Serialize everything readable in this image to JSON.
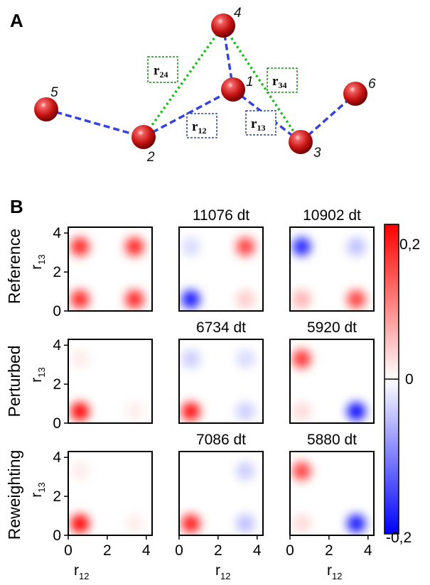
{
  "panel_a": {
    "letter": "A",
    "nodes": [
      {
        "label": "1"
      },
      {
        "label": "2"
      },
      {
        "label": "3"
      },
      {
        "label": "4"
      },
      {
        "label": "5"
      },
      {
        "label": "6"
      }
    ],
    "distances": {
      "r24": {
        "main": "r",
        "sub": "24"
      },
      "r34": {
        "main": "r",
        "sub": "34"
      },
      "r12": {
        "main": "r",
        "sub": "12"
      },
      "r13": {
        "main": "r",
        "sub": "13"
      }
    },
    "colors": {
      "blue_bond": "#3344dd",
      "green_bond": "#22bb22",
      "sphere": "#cc1111"
    }
  },
  "panel_b": {
    "letter": "B",
    "row_labels": [
      "Reference",
      "Perturbed",
      "Reweighting"
    ],
    "time_labels": [
      [
        "",
        "11076 dt",
        "10902 dt"
      ],
      [
        "",
        "6734 dt",
        "5920 dt"
      ],
      [
        "",
        "7086 dt",
        "5880 dt"
      ]
    ],
    "y_axis": {
      "main": "r",
      "sub": "13",
      "ticks": [
        "0",
        "2",
        "4"
      ]
    },
    "x_axis": {
      "main": "r",
      "sub": "12",
      "ticks": [
        "0",
        "2",
        "4"
      ]
    },
    "colorbar": {
      "top_label": "0,2",
      "mid_label": "0",
      "bottom_label": "-0,2",
      "colors": {
        "positive": "#ff0000",
        "zero": "#ffffff",
        "negative": "#0000ff"
      }
    }
  },
  "chart_data": {
    "type": "heatmap",
    "xlabel": "r12",
    "ylabel": "r13",
    "xlim": [
      0,
      4.3
    ],
    "ylim": [
      0,
      4.3
    ],
    "clim": [
      -0.2,
      0.2
    ],
    "rows": [
      "Reference",
      "Perturbed",
      "Reweighting"
    ],
    "cells": [
      [
        {
          "blobs": [
            {
              "x": 0.6,
              "y": 0.6,
              "amp": 0.17
            },
            {
              "x": 3.4,
              "y": 0.6,
              "amp": 0.17
            },
            {
              "x": 0.6,
              "y": 3.3,
              "amp": 0.17
            },
            {
              "x": 3.4,
              "y": 3.3,
              "amp": 0.17
            }
          ]
        },
        {
          "time": "11076 dt",
          "blobs": [
            {
              "x": 0.6,
              "y": 0.6,
              "amp": -0.18
            },
            {
              "x": 3.4,
              "y": 3.3,
              "amp": 0.15
            },
            {
              "x": 0.6,
              "y": 3.3,
              "amp": -0.03
            },
            {
              "x": 3.4,
              "y": 0.6,
              "amp": 0.04
            }
          ]
        },
        {
          "time": "10902 dt",
          "blobs": [
            {
              "x": 0.6,
              "y": 3.3,
              "amp": -0.17
            },
            {
              "x": 3.4,
              "y": 0.6,
              "amp": 0.15
            },
            {
              "x": 0.6,
              "y": 0.6,
              "amp": 0.06
            },
            {
              "x": 3.4,
              "y": 3.3,
              "amp": -0.05
            }
          ]
        }
      ],
      [
        {
          "blobs": [
            {
              "x": 0.6,
              "y": 0.6,
              "amp": 0.2
            },
            {
              "x": 3.4,
              "y": 0.6,
              "amp": 0.015
            },
            {
              "x": 0.6,
              "y": 3.3,
              "amp": 0.015
            }
          ]
        },
        {
          "time": "6734 dt",
          "blobs": [
            {
              "x": 0.6,
              "y": 0.6,
              "amp": 0.19
            },
            {
              "x": 3.4,
              "y": 0.6,
              "amp": -0.04
            },
            {
              "x": 0.6,
              "y": 3.3,
              "amp": -0.04
            },
            {
              "x": 3.4,
              "y": 3.3,
              "amp": -0.03
            }
          ]
        },
        {
          "time": "5920 dt",
          "blobs": [
            {
              "x": 0.6,
              "y": 3.3,
              "amp": 0.16
            },
            {
              "x": 3.4,
              "y": 0.6,
              "amp": -0.19
            },
            {
              "x": 0.6,
              "y": 0.6,
              "amp": 0.03
            }
          ]
        }
      ],
      [
        {
          "blobs": [
            {
              "x": 0.6,
              "y": 0.6,
              "amp": 0.2
            },
            {
              "x": 3.4,
              "y": 0.6,
              "amp": 0.015
            },
            {
              "x": 0.6,
              "y": 3.3,
              "amp": 0.015
            }
          ]
        },
        {
          "time": "7086 dt",
          "blobs": [
            {
              "x": 0.6,
              "y": 0.6,
              "amp": 0.18
            },
            {
              "x": 3.4,
              "y": 0.6,
              "amp": -0.05
            },
            {
              "x": 3.4,
              "y": 3.3,
              "amp": -0.04
            }
          ]
        },
        {
          "time": "5880 dt",
          "blobs": [
            {
              "x": 0.6,
              "y": 3.3,
              "amp": 0.15
            },
            {
              "x": 3.4,
              "y": 0.6,
              "amp": -0.18
            },
            {
              "x": 0.6,
              "y": 0.6,
              "amp": 0.03
            }
          ]
        }
      ]
    ]
  }
}
